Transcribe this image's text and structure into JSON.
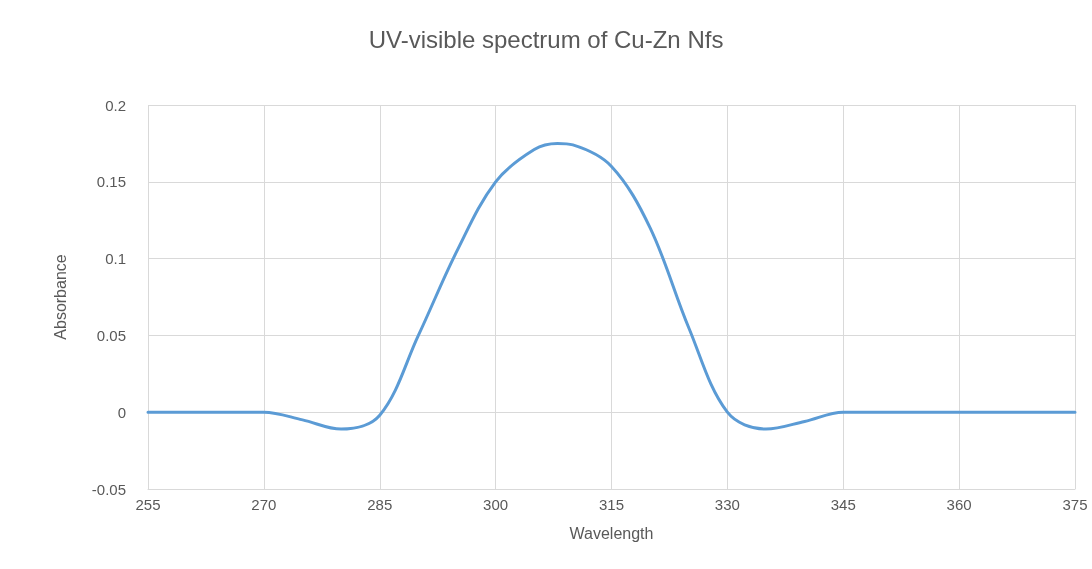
{
  "chart_data": {
    "type": "line",
    "title": "UV-visible spectrum of Cu-Zn Nfs",
    "xlabel": "Wavelength",
    "ylabel": "Absorbance",
    "x": [
      255,
      260,
      265,
      270,
      275,
      280,
      285,
      290,
      295,
      300,
      305,
      308,
      310,
      315,
      320,
      325,
      330,
      335,
      340,
      345,
      350,
      355,
      360,
      365,
      370,
      375
    ],
    "series": [
      {
        "color": "#5b9bd5",
        "values": [
          0,
          0,
          0,
          0,
          -0.005,
          -0.011,
          -0.002,
          0.05,
          0.105,
          0.15,
          0.171,
          0.175,
          0.174,
          0.16,
          0.12,
          0.055,
          0,
          -0.011,
          -0.006,
          0,
          0,
          0,
          0,
          0,
          0,
          0
        ]
      }
    ],
    "xlim": [
      255,
      375
    ],
    "xticks": [
      255,
      270,
      285,
      300,
      315,
      330,
      345,
      360,
      375
    ],
    "ylim": [
      -0.05,
      0.2
    ],
    "yticks": [
      -0.05,
      0,
      0.05,
      0.1,
      0.15,
      0.2
    ],
    "grid": true
  }
}
